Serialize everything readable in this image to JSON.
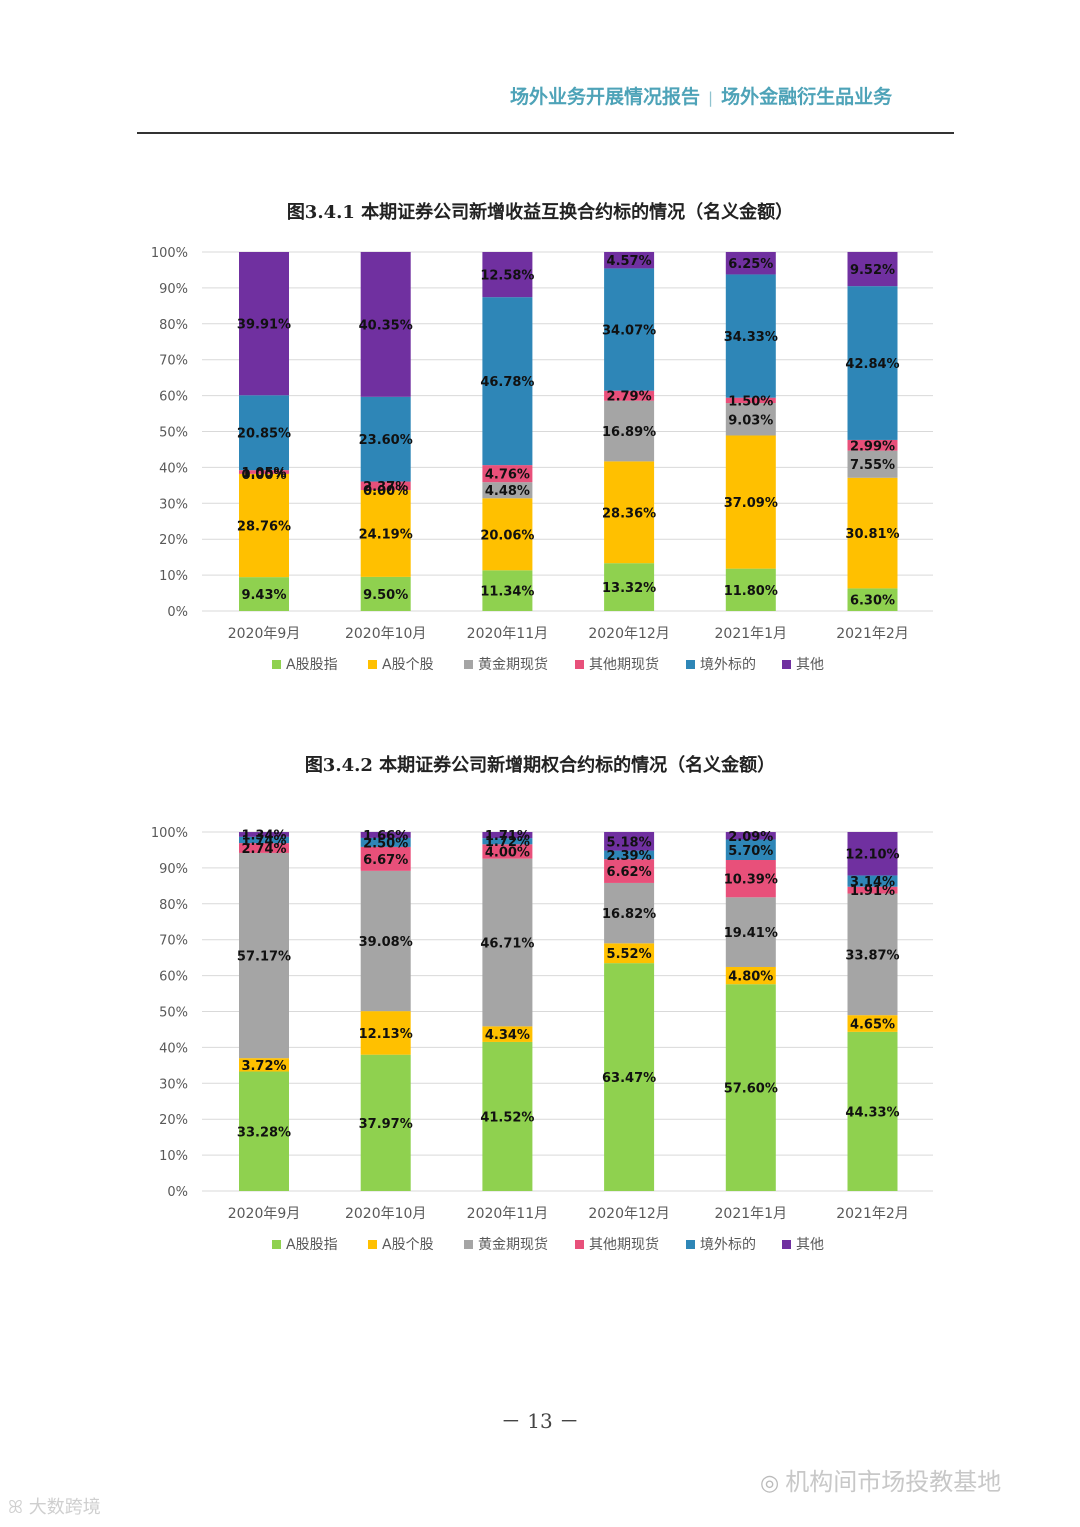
{
  "header": {
    "left": "场外业务开展情况报告",
    "separator": "|",
    "right": "场外金融衍生品业务"
  },
  "page_number": "－ 13 －",
  "watermark": {
    "right": "机构间市场投教基地",
    "right_icon": "wechat-icon",
    "left": "大数跨境",
    "left_icon": "logo-icon"
  },
  "colors": {
    "A股股指": "#8fd14f",
    "A股个股": "#ffc000",
    "黄金期现货": "#a5a5a5",
    "其他期现货": "#e8507a",
    "境外标的": "#2e86b7",
    "其他": "#7030a0",
    "grid": "#d9d9d9",
    "axis_text": "#595959"
  },
  "chart_data": [
    {
      "type": "bar",
      "stacked": true,
      "title": "图3.4.1 本期证券公司新增收益互换合约标的情况（名义金额）",
      "categories": [
        "2020年9月",
        "2020年10月",
        "2020年11月",
        "2020年12月",
        "2021年1月",
        "2021年2月"
      ],
      "yticks": [
        "0%",
        "10%",
        "20%",
        "30%",
        "40%",
        "50%",
        "60%",
        "70%",
        "80%",
        "90%",
        "100%"
      ],
      "ylim": [
        0,
        100
      ],
      "grid": true,
      "legend_position": "bottom",
      "series": [
        {
          "name": "A股股指",
          "values": [
            9.43,
            9.5,
            11.34,
            13.32,
            11.8,
            6.3
          ],
          "labels": [
            "9.43%",
            "9.50%",
            "11.34%",
            "13.32%",
            "11.80%",
            "6.30%"
          ]
        },
        {
          "name": "A股个股",
          "values": [
            28.76,
            24.19,
            20.06,
            28.36,
            37.09,
            30.81
          ],
          "labels": [
            "28.76%",
            "24.19%",
            "20.06%",
            "28.36%",
            "37.09%",
            "30.81%"
          ]
        },
        {
          "name": "黄金期现货",
          "values": [
            0.0,
            0.0,
            4.48,
            16.89,
            9.03,
            7.55
          ],
          "labels": [
            "0.00%",
            "0.00%",
            "4.48%",
            "16.89%",
            "9.03%",
            "7.55%"
          ]
        },
        {
          "name": "其他期现货",
          "values": [
            1.05,
            2.37,
            4.76,
            2.79,
            1.5,
            2.99
          ],
          "labels": [
            "1.05%",
            "2.37%",
            "4.76%",
            "2.79%",
            "1.50%",
            "2.99%"
          ]
        },
        {
          "name": "境外标的",
          "values": [
            20.85,
            23.6,
            46.78,
            34.07,
            34.33,
            42.84
          ],
          "labels": [
            "20.85%",
            "23.60%",
            "46.78%",
            "34.07%",
            "34.33%",
            "42.84%"
          ]
        },
        {
          "name": "其他",
          "values": [
            39.91,
            40.35,
            12.58,
            4.57,
            6.25,
            9.52
          ],
          "labels": [
            "39.91%",
            "40.35%",
            "12.58%",
            "4.57%",
            "6.25%",
            "9.52%"
          ]
        }
      ]
    },
    {
      "type": "bar",
      "stacked": true,
      "title": "图3.4.2 本期证券公司新增期权合约标的情况（名义金额）",
      "categories": [
        "2020年9月",
        "2020年10月",
        "2020年11月",
        "2020年12月",
        "2021年1月",
        "2021年2月"
      ],
      "yticks": [
        "0%",
        "10%",
        "20%",
        "30%",
        "40%",
        "50%",
        "60%",
        "70%",
        "80%",
        "90%",
        "100%"
      ],
      "ylim": [
        0,
        100
      ],
      "grid": true,
      "legend_position": "bottom",
      "series": [
        {
          "name": "A股股指",
          "values": [
            33.28,
            37.97,
            41.52,
            63.47,
            57.6,
            44.33
          ],
          "labels": [
            "33.28%",
            "37.97%",
            "41.52%",
            "63.47%",
            "57.60%",
            "44.33%"
          ]
        },
        {
          "name": "A股个股",
          "values": [
            3.72,
            12.13,
            4.34,
            5.52,
            4.8,
            4.65
          ],
          "labels": [
            "3.72%",
            "12.13%",
            "4.34%",
            "5.52%",
            "4.80%",
            "4.65%"
          ]
        },
        {
          "name": "黄金期现货",
          "values": [
            57.17,
            39.08,
            46.71,
            16.82,
            19.41,
            33.87
          ],
          "labels": [
            "57.17%",
            "39.08%",
            "46.71%",
            "16.82%",
            "19.41%",
            "33.87%"
          ]
        },
        {
          "name": "其他期现货",
          "values": [
            2.74,
            6.67,
            4.0,
            6.62,
            10.39,
            1.91
          ],
          "labels": [
            "2.74%",
            "6.67%",
            "4.00%",
            "6.62%",
            "10.39%",
            "1.91%"
          ]
        },
        {
          "name": "境外标的",
          "values": [
            1.74,
            2.5,
            1.72,
            2.39,
            5.7,
            3.14
          ],
          "labels": [
            "1.74%",
            "2.50%",
            "1.72%",
            "2.39%",
            "5.70%",
            "3.14%"
          ]
        },
        {
          "name": "其他",
          "values": [
            1.34,
            1.66,
            1.71,
            5.18,
            2.09,
            12.1
          ],
          "labels": [
            "1.34%",
            "1.66%",
            "1.71%",
            "5.18%",
            "2.09%",
            "12.10%"
          ]
        }
      ]
    }
  ]
}
